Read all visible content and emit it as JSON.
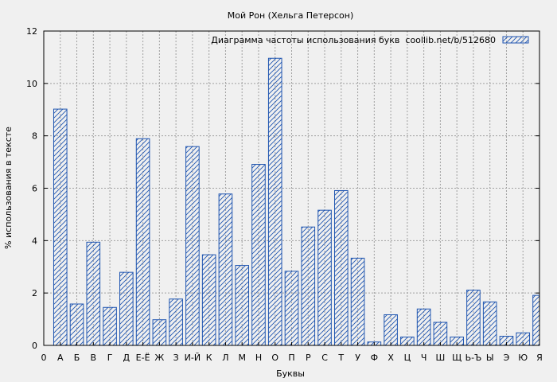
{
  "chart_data": {
    "type": "bar",
    "title": "Мой Рон (Хельга Петерсон)",
    "xlabel": "Буквы",
    "ylabel": "% использования в тексте",
    "ylim": [
      0,
      12
    ],
    "yticks": [
      0,
      2,
      4,
      6,
      8,
      10,
      12
    ],
    "x_tick_labels": [
      "0",
      "А",
      "Б",
      "В",
      "Г",
      "Д",
      "Е-Ё",
      "Ж",
      "З",
      "И-Й",
      "К",
      "Л",
      "М",
      "Н",
      "О",
      "П",
      "Р",
      "С",
      "Т",
      "У",
      "Ф",
      "Х",
      "Ц",
      "Ч",
      "Ш",
      "Щ",
      "Ь-Ъ",
      "Ы",
      "Э",
      "Ю",
      "Я"
    ],
    "categories": [
      "А",
      "Б",
      "В",
      "Г",
      "Д",
      "Е-Ё",
      "Ж",
      "З",
      "И-Й",
      "К",
      "Л",
      "М",
      "Н",
      "О",
      "П",
      "Р",
      "С",
      "Т",
      "У",
      "Ф",
      "Х",
      "Ц",
      "Ч",
      "Ш",
      "Щ",
      "Ь-Ъ",
      "Ы",
      "Э",
      "Ю",
      "Я"
    ],
    "series": [
      {
        "name": "Диаграмма частоты использования букв  coollib.net/b/512680",
        "values": [
          9.02,
          1.58,
          3.94,
          1.45,
          2.79,
          7.89,
          0.98,
          1.77,
          7.59,
          3.46,
          5.78,
          3.05,
          6.91,
          10.96,
          2.83,
          4.52,
          5.16,
          5.91,
          3.33,
          0.13,
          1.17,
          0.32,
          1.39,
          0.88,
          0.32,
          2.11,
          1.66,
          0.35,
          0.48,
          1.91
        ]
      }
    ],
    "grid": true,
    "legend": "top-right"
  },
  "colors": {
    "bar_stroke": "#1f55b0",
    "hatch": "#1f55b0",
    "grid": "#a0a0a0",
    "background": "#f0f0f0",
    "plot_background": "#f0f0f0"
  }
}
